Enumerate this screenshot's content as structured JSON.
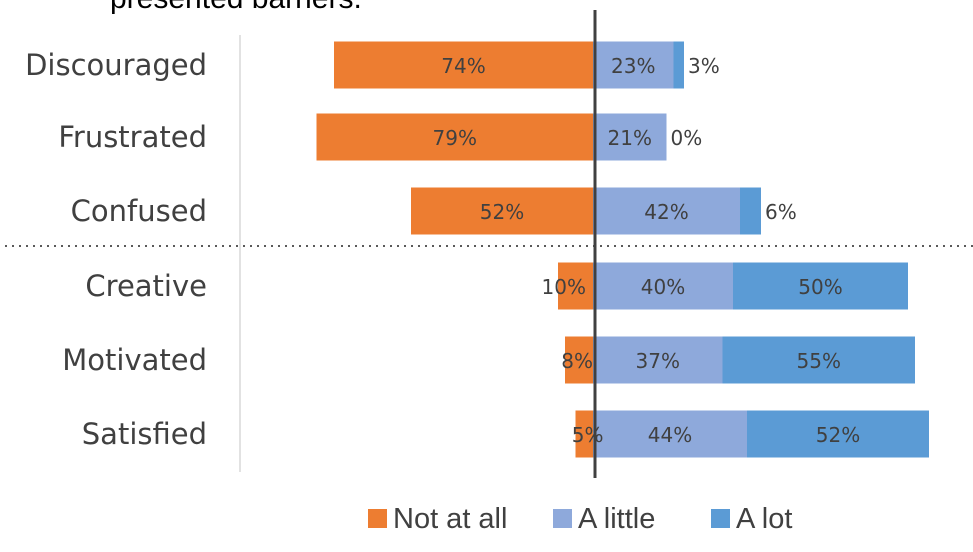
{
  "caption_fragment": "presented  barriers.",
  "colors": {
    "not_at_all": "#ED7D31",
    "a_little": "#8EA9DB",
    "a_lot": "#5B9BD5",
    "axis_line": "#404040",
    "divider": "#595959",
    "label_text": "#404040"
  },
  "chart_data": {
    "type": "bar",
    "orientation": "horizontal-diverging",
    "stacked": true,
    "value_unit": "%",
    "categories": [
      "Discouraged",
      "Frustrated",
      "Confused",
      "Creative",
      "Motivated",
      "Satisfied"
    ],
    "series": [
      {
        "name": "Not at all",
        "side": "left",
        "values": [
          74,
          79,
          52,
          10,
          8,
          5
        ],
        "labels": [
          "74%",
          "79%",
          "52%",
          "10%",
          "8%",
          "5%"
        ]
      },
      {
        "name": "A little",
        "side": "right",
        "values": [
          23,
          21,
          42,
          40,
          37,
          44
        ],
        "labels": [
          "23%",
          "21%",
          "42%",
          "40%",
          "37%",
          "44%"
        ]
      },
      {
        "name": "A lot",
        "side": "right",
        "values": [
          3,
          0,
          6,
          50,
          55,
          52
        ],
        "labels": [
          "3%",
          "0%",
          "6%",
          "50%",
          "55%",
          "52%"
        ]
      }
    ],
    "group_divider_after": "Confused",
    "legend": {
      "position": "bottom",
      "items": [
        "Not at all",
        "A little",
        "A lot"
      ]
    },
    "grid": false
  }
}
